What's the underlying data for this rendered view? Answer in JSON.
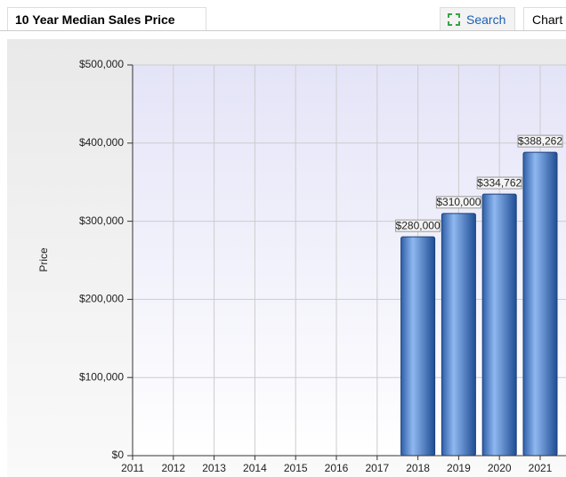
{
  "header": {
    "title": "10 Year Median Sales Price",
    "search": "Search",
    "chart_tab": "Chart"
  },
  "chart_data": {
    "type": "bar",
    "y_label": "Price",
    "categories": [
      "2011",
      "2012",
      "2013",
      "2014",
      "2015",
      "2016",
      "2017",
      "2018",
      "2019",
      "2020",
      "2021"
    ],
    "values": [
      null,
      null,
      null,
      null,
      null,
      null,
      null,
      280000,
      310000,
      334762,
      388262
    ],
    "value_labels": [
      null,
      null,
      null,
      null,
      null,
      null,
      null,
      "$280,000",
      "$310,000",
      "$334,762",
      "$388,262"
    ],
    "color": "#4a86d8",
    "ylim": [
      0,
      500000
    ],
    "yticks": [
      {
        "value": 0,
        "label": "$0"
      },
      {
        "value": 100000,
        "label": "$100,000"
      },
      {
        "value": 200000,
        "label": "$200,000"
      },
      {
        "value": 300000,
        "label": "$300,000"
      },
      {
        "value": 400000,
        "label": "$400,000"
      },
      {
        "value": 500000,
        "label": "$500,000"
      }
    ],
    "grid": true
  }
}
